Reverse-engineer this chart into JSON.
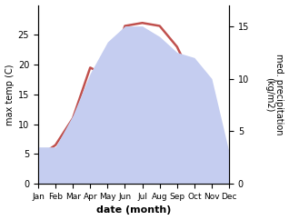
{
  "months": [
    "Jan",
    "Feb",
    "Mar",
    "Apr",
    "May",
    "Jun",
    "Jul",
    "Aug",
    "Sep",
    "Oct",
    "Nov",
    "Dec"
  ],
  "temperature": [
    4.5,
    6.5,
    11.0,
    19.5,
    18.0,
    26.5,
    27.0,
    26.5,
    23.0,
    17.0,
    11.0,
    5.0
  ],
  "precipitation": [
    3.5,
    3.5,
    6.5,
    10.5,
    13.5,
    15.0,
    15.0,
    14.0,
    12.5,
    12.0,
    10.0,
    3.0
  ],
  "temp_color": "#c0504d",
  "precip_fill_color": "#c5cdf0",
  "ylabel_left": "max temp (C)",
  "ylabel_right": "med. precipitation\n(kg/m2)",
  "xlabel": "date (month)",
  "ylim_left": [
    0,
    30
  ],
  "ylim_right": [
    0,
    17
  ],
  "yticks_left": [
    0,
    5,
    10,
    15,
    20,
    25
  ],
  "yticks_right": [
    0,
    5,
    10,
    15
  ],
  "bg_color": "#ffffff"
}
